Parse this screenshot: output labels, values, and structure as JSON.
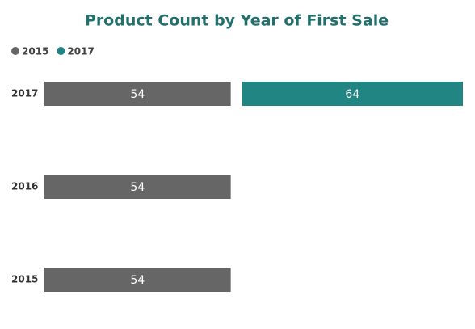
{
  "chart_data": {
    "type": "stacked-bar-horizontal",
    "title": "Product Count by Year of First Sale",
    "categories": [
      "2017",
      "2016",
      "2015"
    ],
    "series": [
      {
        "name": "2015",
        "color": "#666666",
        "values": [
          54,
          54,
          54
        ]
      },
      {
        "name": "2017",
        "color": "#208583",
        "values": [
          64,
          null,
          null
        ]
      }
    ]
  }
}
